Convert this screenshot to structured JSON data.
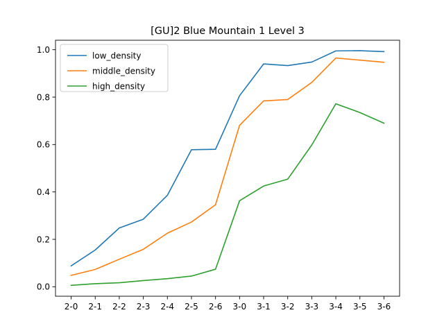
{
  "chart_data": {
    "type": "line",
    "title": "[GU]2 Blue Mountain 1 Level 3",
    "xlabel": "",
    "ylabel": "",
    "categories": [
      "2-0",
      "2-1",
      "2-2",
      "2-3",
      "2-4",
      "2-5",
      "2-6",
      "3-0",
      "3-1",
      "3-2",
      "3-3",
      "3-4",
      "3-5",
      "3-6"
    ],
    "ylim": [
      -0.04,
      1.04
    ],
    "yticks": [
      "0.0",
      "0.2",
      "0.4",
      "0.6",
      "0.8",
      "1.0"
    ],
    "grid": false,
    "legend_position": "top-left",
    "series": [
      {
        "name": "low_density",
        "color": "#1f77b4",
        "values": [
          0.088,
          0.155,
          0.248,
          0.285,
          0.386,
          0.578,
          0.58,
          0.806,
          0.94,
          0.933,
          0.948,
          0.995,
          0.996,
          0.992
        ]
      },
      {
        "name": "middle_density",
        "color": "#ff7f0e",
        "values": [
          0.048,
          0.073,
          0.116,
          0.158,
          0.226,
          0.273,
          0.346,
          0.681,
          0.784,
          0.79,
          0.862,
          0.965,
          0.956,
          0.947
        ]
      },
      {
        "name": "high_density",
        "color": "#2ca02c",
        "values": [
          0.006,
          0.013,
          0.017,
          0.026,
          0.034,
          0.045,
          0.074,
          0.363,
          0.425,
          0.454,
          0.598,
          0.772,
          0.735,
          0.69
        ]
      }
    ]
  }
}
